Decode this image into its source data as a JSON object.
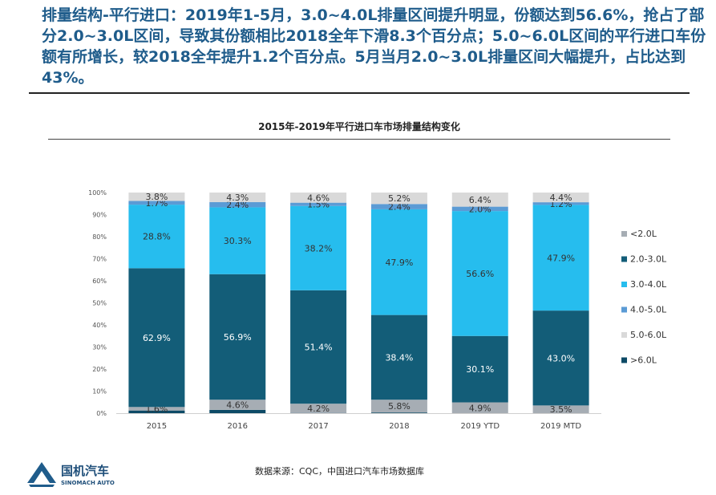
{
  "headline": "排量结构-平行进口：2019年1-5月，3.0~4.0L排量区间提升明显，份额达到56.6%，抢占了部分2.0~3.0L区间，导致其份额相比2018全年下滑8.3个百分点；5.0~6.0L区间的平行进口车份额有所增长，较2018全年提升1.2个百分点。5月当月2.0~3.0L排量区间大幅提升，占比达到43%。",
  "source_note": "数据来源：CQC，中国进口汽车市场数据库",
  "logo": {
    "name_cn": "国机汽车",
    "name_en": "SINOMACH AUTO"
  },
  "chart_data": {
    "type": "bar",
    "stacked": true,
    "title": "2015年-2019年平行进口车市场排量结构变化",
    "categories": [
      "2015",
      "2016",
      "2017",
      "2018",
      "2019 YTD",
      "2019 MTD"
    ],
    "ylim": [
      0,
      100
    ],
    "y_ticks": [
      "0%",
      "10%",
      "20%",
      "30%",
      "40%",
      "50%",
      "60%",
      "70%",
      "80%",
      "90%",
      "100%"
    ],
    "legend_position": "right",
    "series": [
      {
        "name": "<2.0L",
        "color": "#a6adb4",
        "values": [
          1.6,
          4.6,
          4.2,
          5.8,
          4.9,
          3.5
        ],
        "labels": [
          "1.6%",
          "4.6%",
          "4.2%",
          "5.8%",
          "4.9%",
          "3.5%"
        ]
      },
      {
        "name": "2.0-3.0L",
        "color": "#135d78",
        "values": [
          62.9,
          56.9,
          51.4,
          38.4,
          30.1,
          43.0
        ],
        "labels": [
          "62.9%",
          "56.9%",
          "51.4%",
          "38.4%",
          "30.1%",
          "43.0%"
        ]
      },
      {
        "name": "3.0-4.0L",
        "color": "#26bdee",
        "values": [
          28.8,
          30.3,
          38.2,
          47.9,
          56.6,
          47.9
        ],
        "labels": [
          "28.8%",
          "30.3%",
          "38.2%",
          "47.9%",
          "56.6%",
          "47.9%"
        ]
      },
      {
        "name": "4.0-5.0L",
        "color": "#5b9bd5",
        "values": [
          1.7,
          2.4,
          1.5,
          2.4,
          2.0,
          1.2
        ],
        "labels": [
          "1.7%",
          "2.4%",
          "1.5%",
          "2.4%",
          "2.0%",
          "1.2%"
        ]
      },
      {
        "name": "5.0-6.0L",
        "color": "#d9d9d9",
        "values": [
          3.8,
          4.3,
          4.6,
          5.2,
          6.4,
          4.4
        ],
        "labels": [
          "3.8%",
          "4.3%",
          "4.6%",
          "5.2%",
          "6.4%",
          "4.4%"
        ]
      },
      {
        "name": ">6.0L",
        "color": "#0d4a66",
        "values": [
          1.2,
          1.5,
          0.1,
          0.3,
          0,
          0
        ],
        "labels": []
      }
    ]
  }
}
